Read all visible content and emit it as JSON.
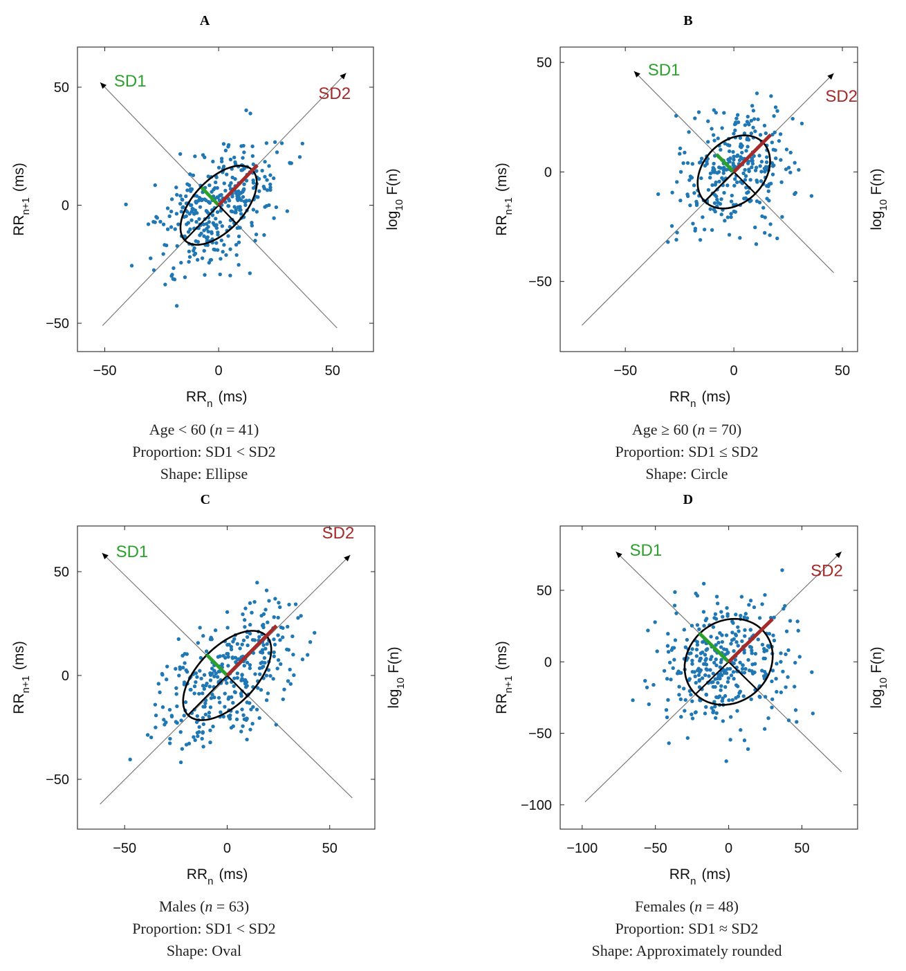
{
  "colors": {
    "points": "#1f77b4",
    "sd1": "#2ca02c",
    "sd2": "#a52a2a",
    "axis": "#333333",
    "diag": "#777777"
  },
  "chart_data": [
    {
      "type": "scatter",
      "panel": "A",
      "xlabel_main": "RR",
      "xlabel_sub": "n",
      "xlabel_unit": "(ms)",
      "ylabel_main": "RR",
      "ylabel_sub": "n+1",
      "ylabel_unit": "(ms)",
      "right_label_main": "log",
      "right_label_sub": "10",
      "right_label_rest": "F(n)",
      "xlim": [
        -62,
        68
      ],
      "ylim": [
        -62,
        67
      ],
      "xticks": [
        -50,
        0,
        50
      ],
      "yticks": [
        -50,
        0,
        50
      ],
      "tick_labels": {
        "x": [
          "−50",
          "0",
          "50"
        ],
        "y": [
          "−50",
          "0",
          "50"
        ]
      },
      "axis_line": {
        "from": [
          -51,
          -51
        ],
        "to": [
          56,
          56
        ]
      },
      "sd1": {
        "label": "SD1",
        "value": 7.5,
        "axis_end": [
          -52,
          52
        ]
      },
      "sd2": {
        "label": "SD2",
        "value": 17,
        "label_pos": [
          58,
          45
        ]
      },
      "ellipse": {
        "cx": 0,
        "cy": 0,
        "sd1": 11,
        "sd2": 21
      },
      "cloud": {
        "n": 360,
        "seed": 11,
        "sd1": 10,
        "sd2": 16,
        "range": [
          -52,
          57
        ]
      },
      "caption": {
        "line1_pre": "Age < 60 (",
        "n_symbol": "n",
        "line1_post": " = 41)",
        "line2": "Proportion: SD1 < SD2",
        "line3": "Shape: Ellipse"
      }
    },
    {
      "type": "scatter",
      "panel": "B",
      "xlabel_main": "RR",
      "xlabel_sub": "n",
      "xlabel_unit": "(ms)",
      "ylabel_main": "RR",
      "ylabel_sub": "n+1",
      "ylabel_unit": "(ms)",
      "right_label_main": "log",
      "right_label_sub": "10",
      "right_label_rest": "F(n)",
      "xlim": [
        -80,
        57
      ],
      "ylim": [
        -82,
        57
      ],
      "xticks": [
        -50,
        0,
        50
      ],
      "yticks": [
        -50,
        0,
        50
      ],
      "tick_labels": {
        "x": [
          "−50",
          "0",
          "50"
        ],
        "y": [
          "−50",
          "0",
          "50"
        ]
      },
      "axis_line": {
        "from": [
          -70,
          -70
        ],
        "to": [
          46,
          45
        ]
      },
      "sd1": {
        "label": "SD1",
        "value": 8,
        "axis_end": [
          -46,
          46
        ]
      },
      "sd2": {
        "label": "SD2",
        "value": 17,
        "label_pos": [
          57,
          32
        ]
      },
      "ellipse": {
        "cx": 0,
        "cy": 0,
        "sd1": 14,
        "sd2": 19
      },
      "cloud": {
        "n": 300,
        "seed": 23,
        "sd1": 12,
        "sd2": 15,
        "range": [
          -72,
          47
        ]
      },
      "caption": {
        "line1_pre": "Age ≥ 60 (",
        "n_symbol": "n",
        "line1_post": " = 70)",
        "line2": "Proportion: SD1 ≤ SD2",
        "line3": "Shape: Circle"
      }
    },
    {
      "type": "scatter",
      "panel": "C",
      "xlabel_main": "RR",
      "xlabel_sub": "n",
      "xlabel_unit": "(ms)",
      "ylabel_main": "RR",
      "ylabel_sub": "n+1",
      "ylabel_unit": "(ms)",
      "right_label_main": "log",
      "right_label_sub": "10",
      "right_label_rest": "F(n)",
      "xlim": [
        -73,
        72
      ],
      "ylim": [
        -74,
        72
      ],
      "xticks": [
        -50,
        0,
        50
      ],
      "yticks": [
        -50,
        0,
        50
      ],
      "tick_labels": {
        "x": [
          "−50",
          "0",
          "50"
        ],
        "y": [
          "−50",
          "0",
          "50"
        ]
      },
      "axis_line": {
        "from": [
          -62,
          -62
        ],
        "to": [
          60,
          58
        ]
      },
      "sd1": {
        "label": "SD1",
        "value": 10,
        "axis_end": [
          -61,
          59
        ]
      },
      "sd2": {
        "label": "SD2",
        "value": 24,
        "label_pos": [
          62,
          66
        ]
      },
      "ellipse": {
        "cx": 0,
        "cy": 0,
        "sd1": 14,
        "sd2": 27
      },
      "cloud": {
        "n": 340,
        "seed": 37,
        "sd1": 12,
        "sd2": 20,
        "range": [
          -62,
          61
        ]
      },
      "caption": {
        "line1_pre": "Males (",
        "n_symbol": "n",
        "line1_post": " = 63)",
        "line2": "Proportion: SD1 < SD2",
        "line3": "Shape: Oval"
      }
    },
    {
      "type": "scatter",
      "panel": "D",
      "xlabel_main": "RR",
      "xlabel_sub": "n",
      "xlabel_unit": "(ms)",
      "ylabel_main": "RR",
      "ylabel_sub": "n+1",
      "ylabel_unit": "(ms)",
      "right_label_main": "log",
      "right_label_sub": "10",
      "right_label_rest": "F(n)",
      "xlim": [
        -115,
        88
      ],
      "ylim": [
        -117,
        95
      ],
      "xticks": [
        -100,
        -50,
        0,
        50
      ],
      "yticks": [
        -100,
        -50,
        0,
        50
      ],
      "tick_labels": {
        "x": [
          "−100",
          "−50",
          "0",
          "50"
        ],
        "y": [
          "−100",
          "−50",
          "0",
          "50"
        ]
      },
      "axis_line": {
        "from": [
          -98,
          -98
        ],
        "to": [
          77,
          77
        ]
      },
      "sd1": {
        "label": "SD1",
        "value": 20,
        "axis_end": [
          -77,
          77
        ]
      },
      "sd2": {
        "label": "SD2",
        "value": 30,
        "label_pos": [
          78,
          60
        ]
      },
      "ellipse": {
        "cx": 0,
        "cy": 0,
        "sd1": 28,
        "sd2": 32
      },
      "cloud": {
        "n": 360,
        "seed": 53,
        "sd1": 22,
        "sd2": 26,
        "range": [
          -100,
          78
        ]
      },
      "caption": {
        "line1_pre": "Females (",
        "n_symbol": "n",
        "line1_post": " = 48)",
        "line2": "Proportion: SD1 ≈ SD2",
        "line3": "Shape: Approximately rounded"
      }
    }
  ]
}
